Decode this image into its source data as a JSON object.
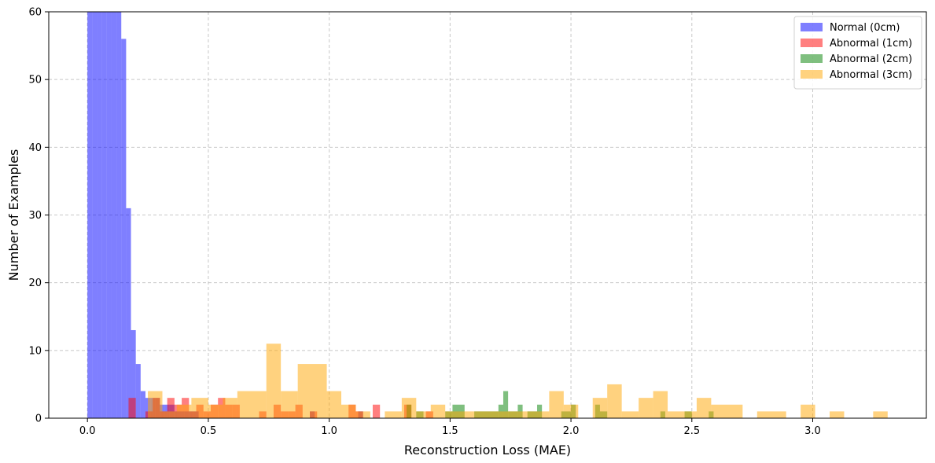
{
  "chart_data": {
    "type": "histogram",
    "xlabel": "Reconstruction Loss (MAE)",
    "ylabel": "Number of Examples",
    "xlim": [
      -0.16,
      3.47
    ],
    "ylim": [
      0,
      60
    ],
    "xticks": [
      0.0,
      0.5,
      1.0,
      1.5,
      2.0,
      2.5,
      3.0
    ],
    "xtick_labels": [
      "0.0",
      "0.5",
      "1.0",
      "1.5",
      "2.0",
      "2.5",
      "3.0"
    ],
    "yticks": [
      0,
      10,
      20,
      30,
      40,
      50,
      60
    ],
    "ytick_labels": [
      "0",
      "10",
      "20",
      "30",
      "40",
      "50",
      "60"
    ],
    "grid": true,
    "legend_position": "top-right",
    "series": [
      {
        "name": "Normal (0cm)",
        "color": "#0000ff",
        "opacity": 0.5,
        "bins": [
          [
            0.0,
            0.02,
            60
          ],
          [
            0.02,
            0.04,
            60
          ],
          [
            0.04,
            0.06,
            60
          ],
          [
            0.06,
            0.08,
            60
          ],
          [
            0.08,
            0.1,
            60
          ],
          [
            0.1,
            0.12,
            60
          ],
          [
            0.12,
            0.14,
            60
          ],
          [
            0.14,
            0.16,
            56
          ],
          [
            0.16,
            0.18,
            31
          ],
          [
            0.18,
            0.2,
            13
          ],
          [
            0.2,
            0.22,
            8
          ],
          [
            0.22,
            0.24,
            4
          ],
          [
            0.24,
            0.26,
            3
          ],
          [
            0.26,
            0.28,
            3
          ],
          [
            0.28,
            0.3,
            3
          ],
          [
            0.3,
            0.32,
            2
          ],
          [
            0.32,
            0.34,
            2
          ],
          [
            0.34,
            0.36,
            2
          ],
          [
            0.36,
            0.38,
            1
          ],
          [
            0.38,
            0.4,
            1
          ],
          [
            0.4,
            0.42,
            1
          ],
          [
            0.42,
            0.44,
            1
          ],
          [
            0.44,
            0.46,
            1
          ],
          [
            0.92,
            0.94,
            1
          ],
          [
            1.12,
            1.14,
            1
          ]
        ]
      },
      {
        "name": "Abnormal (1cm)",
        "color": "#ff0000",
        "opacity": 0.5,
        "bins": [
          [
            0.17,
            0.2,
            3
          ],
          [
            0.24,
            0.27,
            1
          ],
          [
            0.27,
            0.3,
            3
          ],
          [
            0.3,
            0.33,
            1
          ],
          [
            0.33,
            0.36,
            3
          ],
          [
            0.36,
            0.39,
            2
          ],
          [
            0.39,
            0.42,
            3
          ],
          [
            0.42,
            0.45,
            1
          ],
          [
            0.45,
            0.48,
            2
          ],
          [
            0.48,
            0.51,
            1
          ],
          [
            0.51,
            0.54,
            2
          ],
          [
            0.54,
            0.57,
            3
          ],
          [
            0.57,
            0.6,
            2
          ],
          [
            0.6,
            0.63,
            2
          ],
          [
            0.71,
            0.74,
            1
          ],
          [
            0.77,
            0.8,
            2
          ],
          [
            0.8,
            0.83,
            1
          ],
          [
            0.83,
            0.86,
            1
          ],
          [
            0.86,
            0.89,
            2
          ],
          [
            0.92,
            0.95,
            1
          ],
          [
            1.08,
            1.11,
            2
          ],
          [
            1.11,
            1.14,
            1
          ],
          [
            1.18,
            1.21,
            2
          ],
          [
            1.31,
            1.34,
            2
          ],
          [
            1.4,
            1.43,
            1
          ]
        ]
      },
      {
        "name": "Abnormal (2cm)",
        "color": "#008000",
        "opacity": 0.5,
        "bins": [
          [
            1.32,
            1.34,
            2
          ],
          [
            1.36,
            1.39,
            1
          ],
          [
            1.48,
            1.51,
            1
          ],
          [
            1.51,
            1.56,
            2
          ],
          [
            1.6,
            1.7,
            1
          ],
          [
            1.7,
            1.72,
            2
          ],
          [
            1.72,
            1.74,
            4
          ],
          [
            1.74,
            1.78,
            1
          ],
          [
            1.78,
            1.8,
            2
          ],
          [
            1.82,
            1.86,
            1
          ],
          [
            1.86,
            1.88,
            2
          ],
          [
            1.96,
            2.0,
            1
          ],
          [
            2.0,
            2.02,
            2
          ],
          [
            2.1,
            2.12,
            2
          ],
          [
            2.12,
            2.15,
            1
          ],
          [
            2.37,
            2.39,
            1
          ],
          [
            2.47,
            2.5,
            1
          ],
          [
            2.57,
            2.59,
            1
          ]
        ]
      },
      {
        "name": "Abnormal (3cm)",
        "color": "#ffa500",
        "opacity": 0.5,
        "bins": [
          [
            0.25,
            0.31,
            4
          ],
          [
            0.31,
            0.37,
            1
          ],
          [
            0.37,
            0.43,
            2
          ],
          [
            0.43,
            0.5,
            3
          ],
          [
            0.5,
            0.56,
            2
          ],
          [
            0.56,
            0.62,
            3
          ],
          [
            0.62,
            0.74,
            4
          ],
          [
            0.74,
            0.8,
            11
          ],
          [
            0.8,
            0.87,
            4
          ],
          [
            0.87,
            0.99,
            8
          ],
          [
            0.99,
            1.05,
            4
          ],
          [
            1.05,
            1.11,
            2
          ],
          [
            1.11,
            1.17,
            1
          ],
          [
            1.23,
            1.3,
            1
          ],
          [
            1.3,
            1.36,
            3
          ],
          [
            1.36,
            1.42,
            1
          ],
          [
            1.42,
            1.48,
            2
          ],
          [
            1.48,
            1.6,
            1
          ],
          [
            1.6,
            1.66,
            1
          ],
          [
            1.66,
            1.73,
            1
          ],
          [
            1.73,
            1.85,
            1
          ],
          [
            1.85,
            1.91,
            1
          ],
          [
            1.91,
            1.97,
            4
          ],
          [
            1.97,
            2.03,
            2
          ],
          [
            2.03,
            2.09,
            0
          ],
          [
            2.09,
            2.15,
            3
          ],
          [
            2.15,
            2.21,
            5
          ],
          [
            2.21,
            2.28,
            1
          ],
          [
            2.28,
            2.34,
            3
          ],
          [
            2.34,
            2.4,
            4
          ],
          [
            2.4,
            2.52,
            1
          ],
          [
            2.52,
            2.58,
            3
          ],
          [
            2.58,
            2.71,
            2
          ],
          [
            2.77,
            2.89,
            1
          ],
          [
            2.95,
            3.01,
            2
          ],
          [
            3.07,
            3.13,
            1
          ],
          [
            3.25,
            3.31,
            1
          ]
        ]
      }
    ]
  }
}
